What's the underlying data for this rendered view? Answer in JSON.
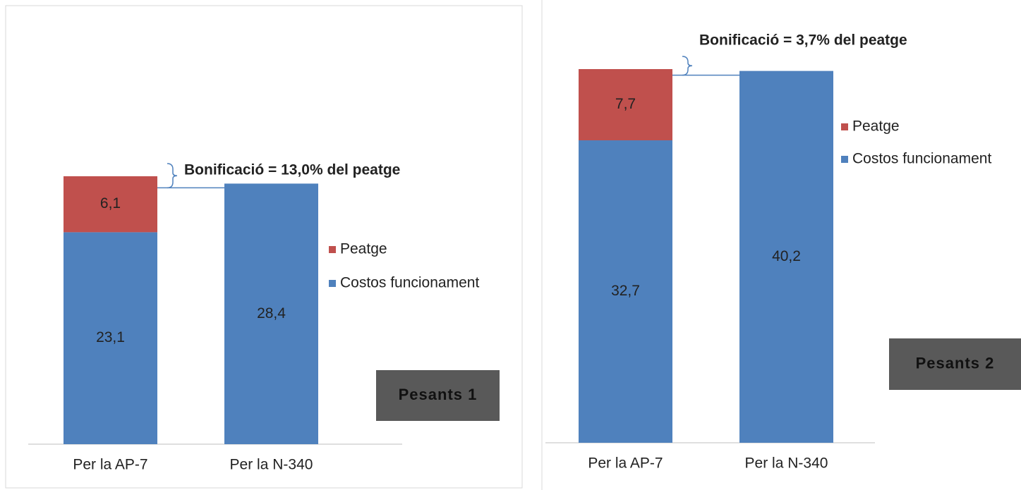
{
  "chart_data": [
    {
      "type": "bar",
      "stacked": true,
      "categories": [
        "Per la AP-7",
        "Per la N-340"
      ],
      "series": [
        {
          "name": "Costos funcionament",
          "color": "#4f81bd",
          "values": [
            23.1,
            28.4
          ],
          "value_labels": [
            "23,1",
            "28,4"
          ]
        },
        {
          "name": "Peatge",
          "color": "#c0504d",
          "values": [
            6.1,
            null
          ],
          "value_labels": [
            "6,1",
            null
          ]
        }
      ],
      "annotation": "Bonificació = 13,0% del peatge",
      "label": "Pesants 1"
    },
    {
      "type": "bar",
      "stacked": true,
      "categories": [
        "Per la AP-7",
        "Per la N-340"
      ],
      "series": [
        {
          "name": "Costos funcionament",
          "color": "#4f81bd",
          "values": [
            32.7,
            40.2
          ],
          "value_labels": [
            "32,7",
            "40,2"
          ]
        },
        {
          "name": "Peatge",
          "color": "#c0504d",
          "values": [
            7.7,
            null
          ],
          "value_labels": [
            "7,7",
            null
          ]
        }
      ],
      "annotation": "Bonificació = 3,7% del peatge",
      "label": "Pesants 2"
    }
  ]
}
